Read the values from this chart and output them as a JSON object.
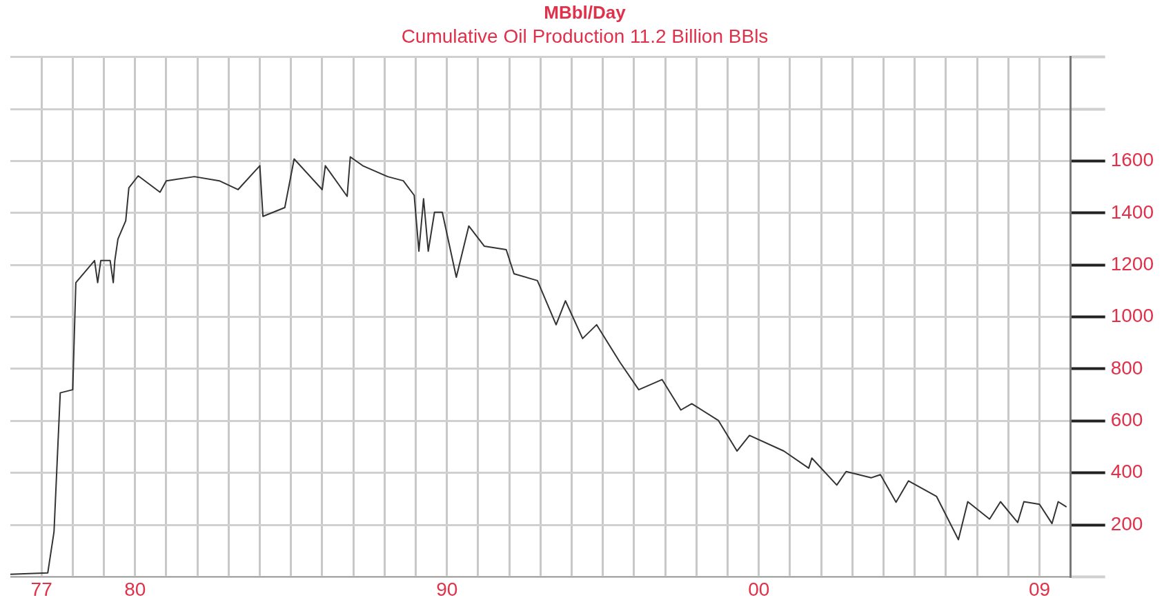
{
  "chart_data": {
    "type": "line",
    "title": "MBbl/Day",
    "subtitle": "Cumulative Oil Production 11.2 Billion BBls",
    "series": [
      {
        "color": "#333333",
        "x": [
          1976.0,
          1977.2,
          1977.4,
          1977.6,
          1978.0,
          1978.1,
          1978.7,
          1978.8,
          1978.9,
          1979.2,
          1979.3,
          1979.35,
          1979.45,
          1979.7,
          1979.8,
          1980.1,
          1980.8,
          1981.0,
          1981.9,
          1982.7,
          1983.3,
          1984.0,
          1984.1,
          1984.8,
          1985.1,
          1986.0,
          1986.1,
          1986.8,
          1986.9,
          1987.3,
          1988.1,
          1988.6,
          1988.95,
          1989.1,
          1989.25,
          1989.4,
          1989.6,
          1989.85,
          1990.3,
          1990.7,
          1991.2,
          1991.9,
          1992.15,
          1992.9,
          1993.5,
          1993.8,
          1994.35,
          1994.8,
          1995.55,
          1996.15,
          1996.9,
          1997.5,
          1997.85,
          1998.7,
          1999.3,
          1999.7,
          2000.8,
          2001.6,
          2001.7,
          2002.5,
          2002.8,
          2003.6,
          2003.9,
          2004.4,
          2004.8,
          2005.7,
          2006.4,
          2006.7,
          2007.4,
          2007.75,
          2008.3,
          2008.5,
          2009.0,
          2009.4,
          2009.6,
          2009.85
        ],
        "values": [
          10,
          15,
          173,
          708,
          720,
          1132,
          1217,
          1132,
          1217,
          1217,
          1132,
          1217,
          1300,
          1370,
          1497,
          1543,
          1480,
          1524,
          1540,
          1524,
          1490,
          1582,
          1387,
          1421,
          1608,
          1490,
          1582,
          1464,
          1616,
          1582,
          1540,
          1524,
          1468,
          1253,
          1455,
          1253,
          1403,
          1403,
          1153,
          1350,
          1272,
          1259,
          1166,
          1140,
          970,
          1062,
          917,
          970,
          825,
          720,
          759,
          642,
          666,
          602,
          484,
          544,
          484,
          418,
          457,
          353,
          405,
          381,
          393,
          287,
          369,
          309,
          143,
          289,
          222,
          289,
          209,
          289,
          279,
          205,
          289,
          270
        ]
      }
    ],
    "xlim": [
      1976,
      2010
    ],
    "xticks": [
      {
        "value": 1977,
        "label": "77"
      },
      {
        "value": 1978,
        "label": null
      },
      {
        "value": 1979,
        "label": null
      },
      {
        "value": 1980,
        "label": "80"
      },
      {
        "value": 1981,
        "label": null
      },
      {
        "value": 1982,
        "label": null
      },
      {
        "value": 1983,
        "label": null
      },
      {
        "value": 1984,
        "label": null
      },
      {
        "value": 1985,
        "label": null
      },
      {
        "value": 1986,
        "label": null
      },
      {
        "value": 1987,
        "label": null
      },
      {
        "value": 1988,
        "label": null
      },
      {
        "value": 1989,
        "label": null
      },
      {
        "value": 1990,
        "label": "90"
      },
      {
        "value": 1991,
        "label": null
      },
      {
        "value": 1992,
        "label": null
      },
      {
        "value": 1993,
        "label": null
      },
      {
        "value": 1994,
        "label": null
      },
      {
        "value": 1995,
        "label": null
      },
      {
        "value": 1996,
        "label": null
      },
      {
        "value": 1997,
        "label": null
      },
      {
        "value": 1998,
        "label": null
      },
      {
        "value": 1999,
        "label": null
      },
      {
        "value": 2000,
        "label": "00"
      },
      {
        "value": 2001,
        "label": null
      },
      {
        "value": 2002,
        "label": null
      },
      {
        "value": 2003,
        "label": null
      },
      {
        "value": 2004,
        "label": null
      },
      {
        "value": 2005,
        "label": null
      },
      {
        "value": 2006,
        "label": null
      },
      {
        "value": 2007,
        "label": null
      },
      {
        "value": 2008,
        "label": null
      },
      {
        "value": 2009,
        "label": "09"
      }
    ],
    "ylim": [
      0,
      2000
    ],
    "yticks": [
      {
        "value": 0,
        "label": null
      },
      200,
      400,
      600,
      800,
      1000,
      1200,
      1400,
      1600,
      {
        "value": 1800,
        "label": null
      },
      {
        "value": 2000,
        "label": null
      }
    ],
    "grid": true,
    "legend": false,
    "marker": "none",
    "line_style": "solid"
  }
}
